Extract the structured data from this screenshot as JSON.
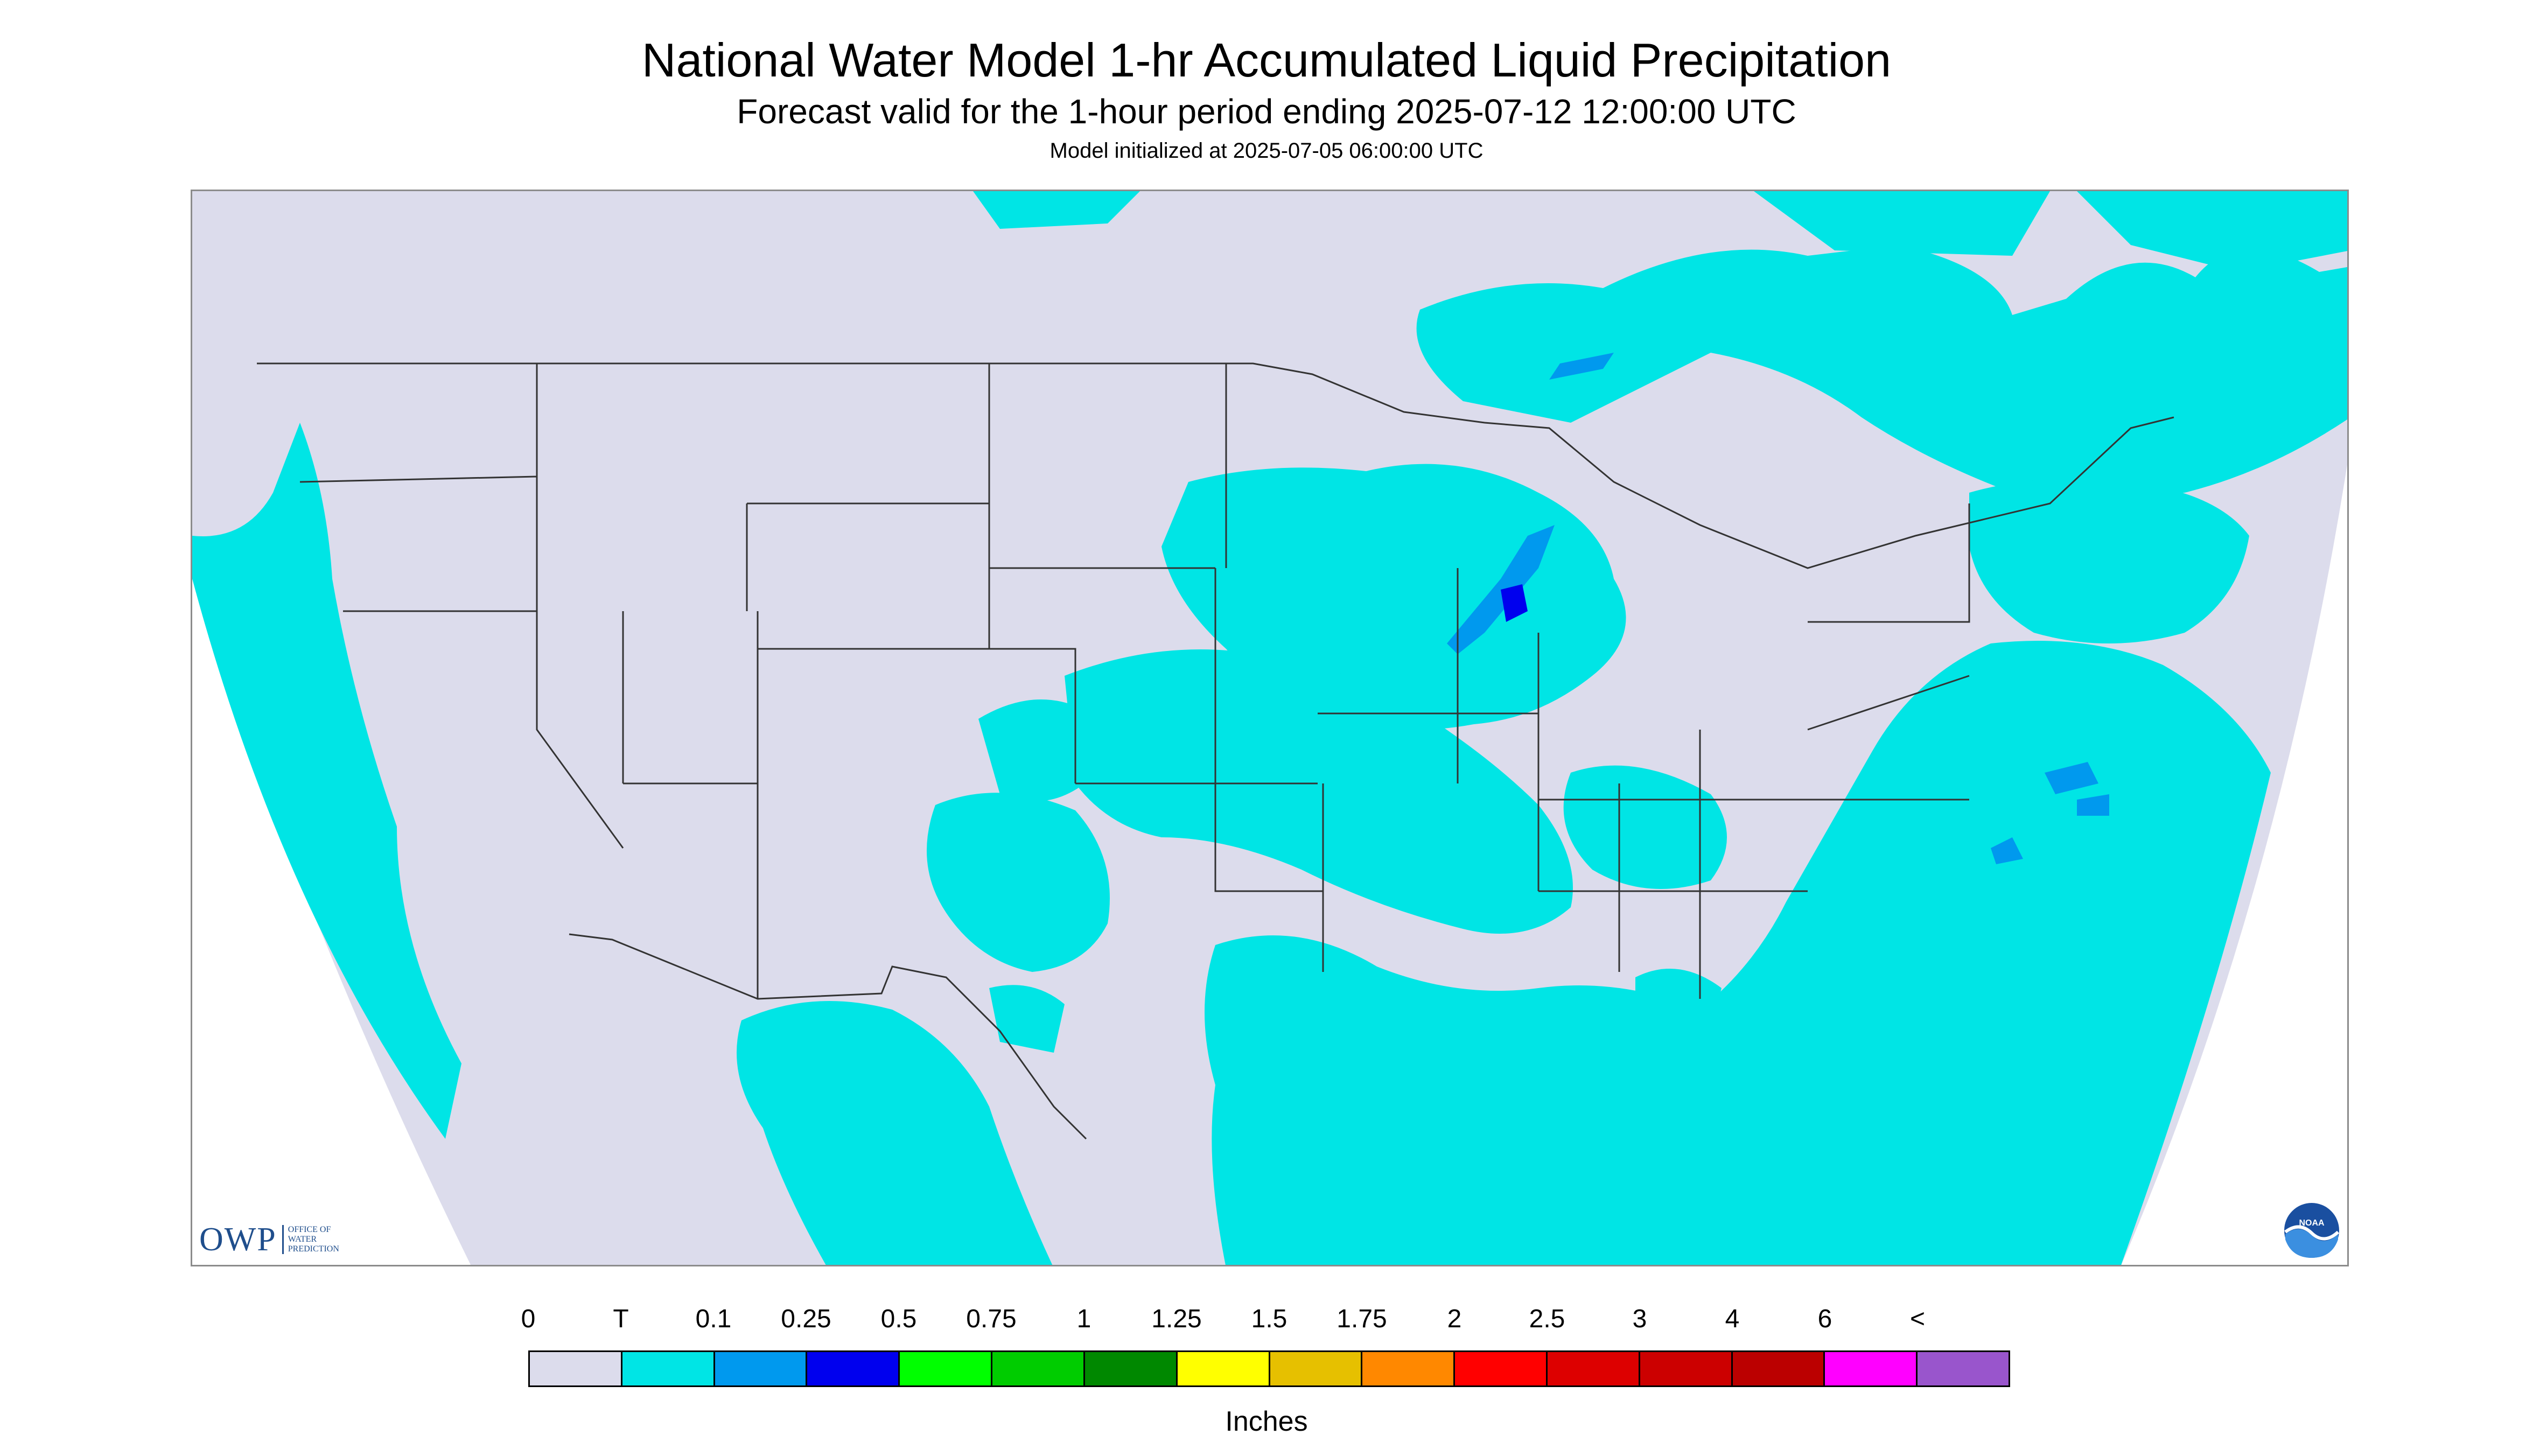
{
  "header": {
    "title": "National Water Model 1-hr Accumulated Liquid Precipitation",
    "subtitle": "Forecast valid for the 1-hour period ending 2025-07-12 12:00:00 UTC",
    "init": "Model initialized at 2025-07-05 06:00:00 UTC"
  },
  "map": {
    "land_color": "#dcdcec",
    "precip_light_color": "#00e5e5",
    "precip_mid_color": "#0099ee",
    "precip_heavy_color": "#0000ee",
    "boundary_color": "#333333"
  },
  "logos": {
    "owp_mark": "OWP",
    "owp_text": "OFFICE OF WATER PREDICTION",
    "owp_icon": "owp-logo-icon",
    "noaa_text": "NOAA",
    "noaa_icon": "noaa-logo-icon"
  },
  "legend": {
    "labels": [
      "0",
      "T",
      "0.1",
      "0.25",
      "0.5",
      "0.75",
      "1",
      "1.25",
      "1.5",
      "1.75",
      "2",
      "2.5",
      "3",
      "4",
      "6",
      "<"
    ],
    "colors": [
      "#dcdcec",
      "#00e5e5",
      "#0099ee",
      "#0000ee",
      "#00ff00",
      "#00cc00",
      "#008800",
      "#ffff00",
      "#e6c000",
      "#ff8800",
      "#ff0000",
      "#dd0000",
      "#cc0000",
      "#bb0000",
      "#ff00ff",
      "#9955cc"
    ],
    "units": "Inches"
  }
}
